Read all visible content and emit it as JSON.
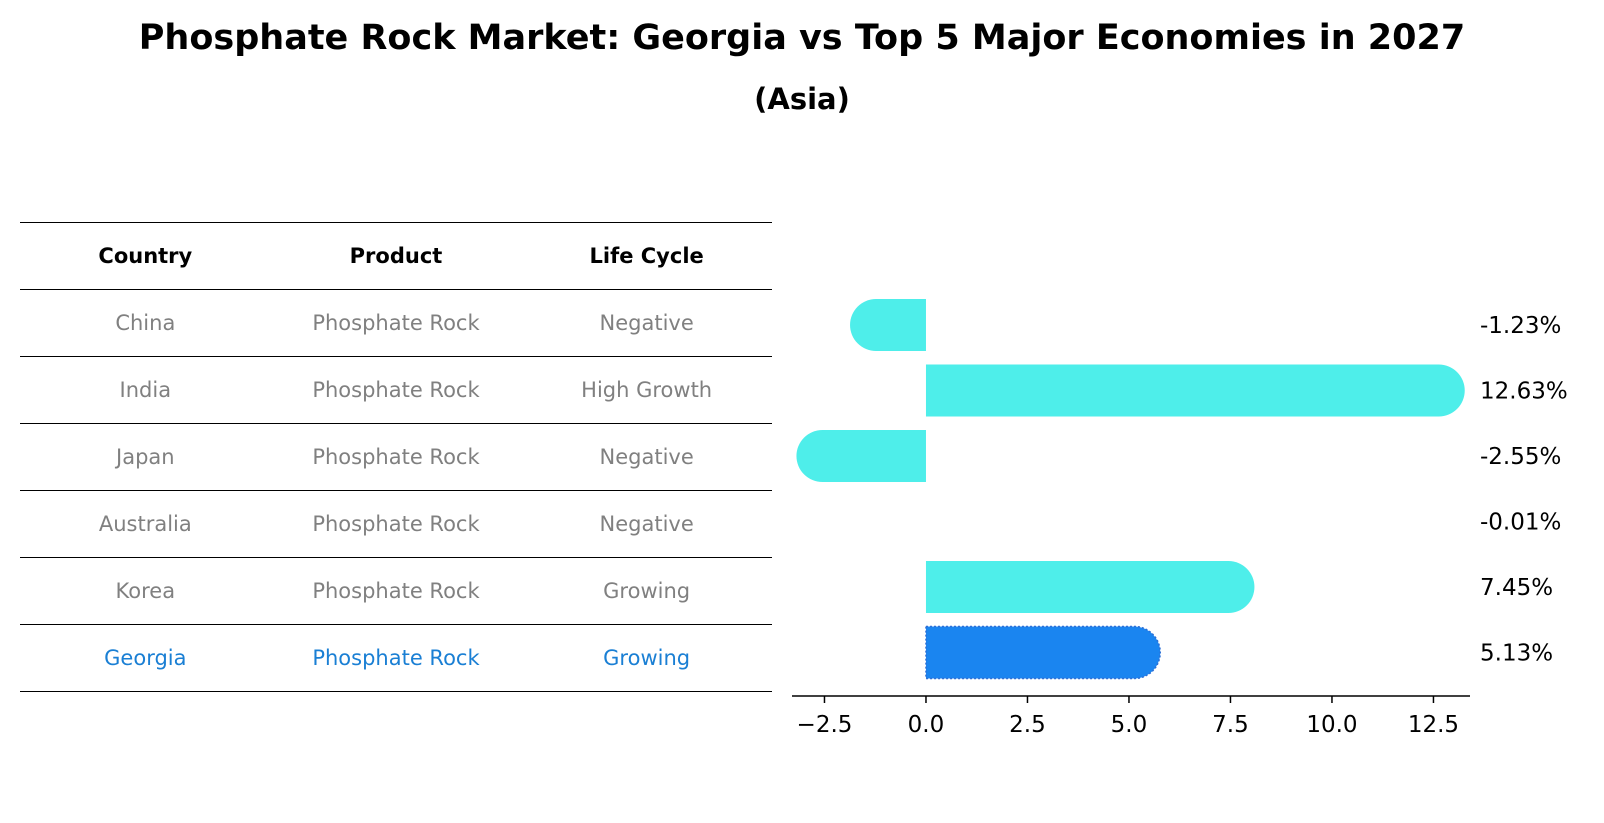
{
  "chart_data": {
    "type": "bar",
    "orientation": "horizontal",
    "title": "Phosphate Rock Market: Georgia vs Top 5 Major Economies in 2027",
    "subtitle": "(Asia)",
    "table": {
      "headers": [
        "Country",
        "Product",
        "Life Cycle"
      ],
      "rows": [
        {
          "country": "China",
          "product": "Phosphate Rock",
          "life_cycle": "Negative",
          "highlight": false
        },
        {
          "country": "India",
          "product": "Phosphate Rock",
          "life_cycle": "High Growth",
          "highlight": false
        },
        {
          "country": "Japan",
          "product": "Phosphate Rock",
          "life_cycle": "Negative",
          "highlight": false
        },
        {
          "country": "Australia",
          "product": "Phosphate Rock",
          "life_cycle": "Negative",
          "highlight": false
        },
        {
          "country": "Korea",
          "product": "Phosphate Rock",
          "life_cycle": "Growing",
          "highlight": false
        },
        {
          "country": "Georgia",
          "product": "Phosphate Rock",
          "life_cycle": "Growing",
          "highlight": true
        }
      ]
    },
    "categories": [
      "China",
      "India",
      "Japan",
      "Australia",
      "Korea",
      "Georgia"
    ],
    "values": [
      -1.23,
      12.63,
      -2.55,
      -0.01,
      7.45,
      5.13
    ],
    "value_labels": [
      "-1.23%",
      "12.63%",
      "-2.55%",
      "-0.01%",
      "7.45%",
      "5.13%"
    ],
    "highlight_index": 5,
    "xlim": [
      -3.3,
      13.4
    ],
    "xticks": [
      -2.5,
      0.0,
      2.5,
      5.0,
      7.5,
      10.0,
      12.5
    ],
    "xtick_labels": [
      "−2.5",
      "0.0",
      "2.5",
      "5.0",
      "7.5",
      "10.0",
      "12.5"
    ],
    "xlabel": "",
    "ylabel": "",
    "colors": {
      "bar": "#4eeeea",
      "highlight": "#1a85f0",
      "highlight_text": "#1a7fd4",
      "muted_text": "#808080"
    }
  }
}
